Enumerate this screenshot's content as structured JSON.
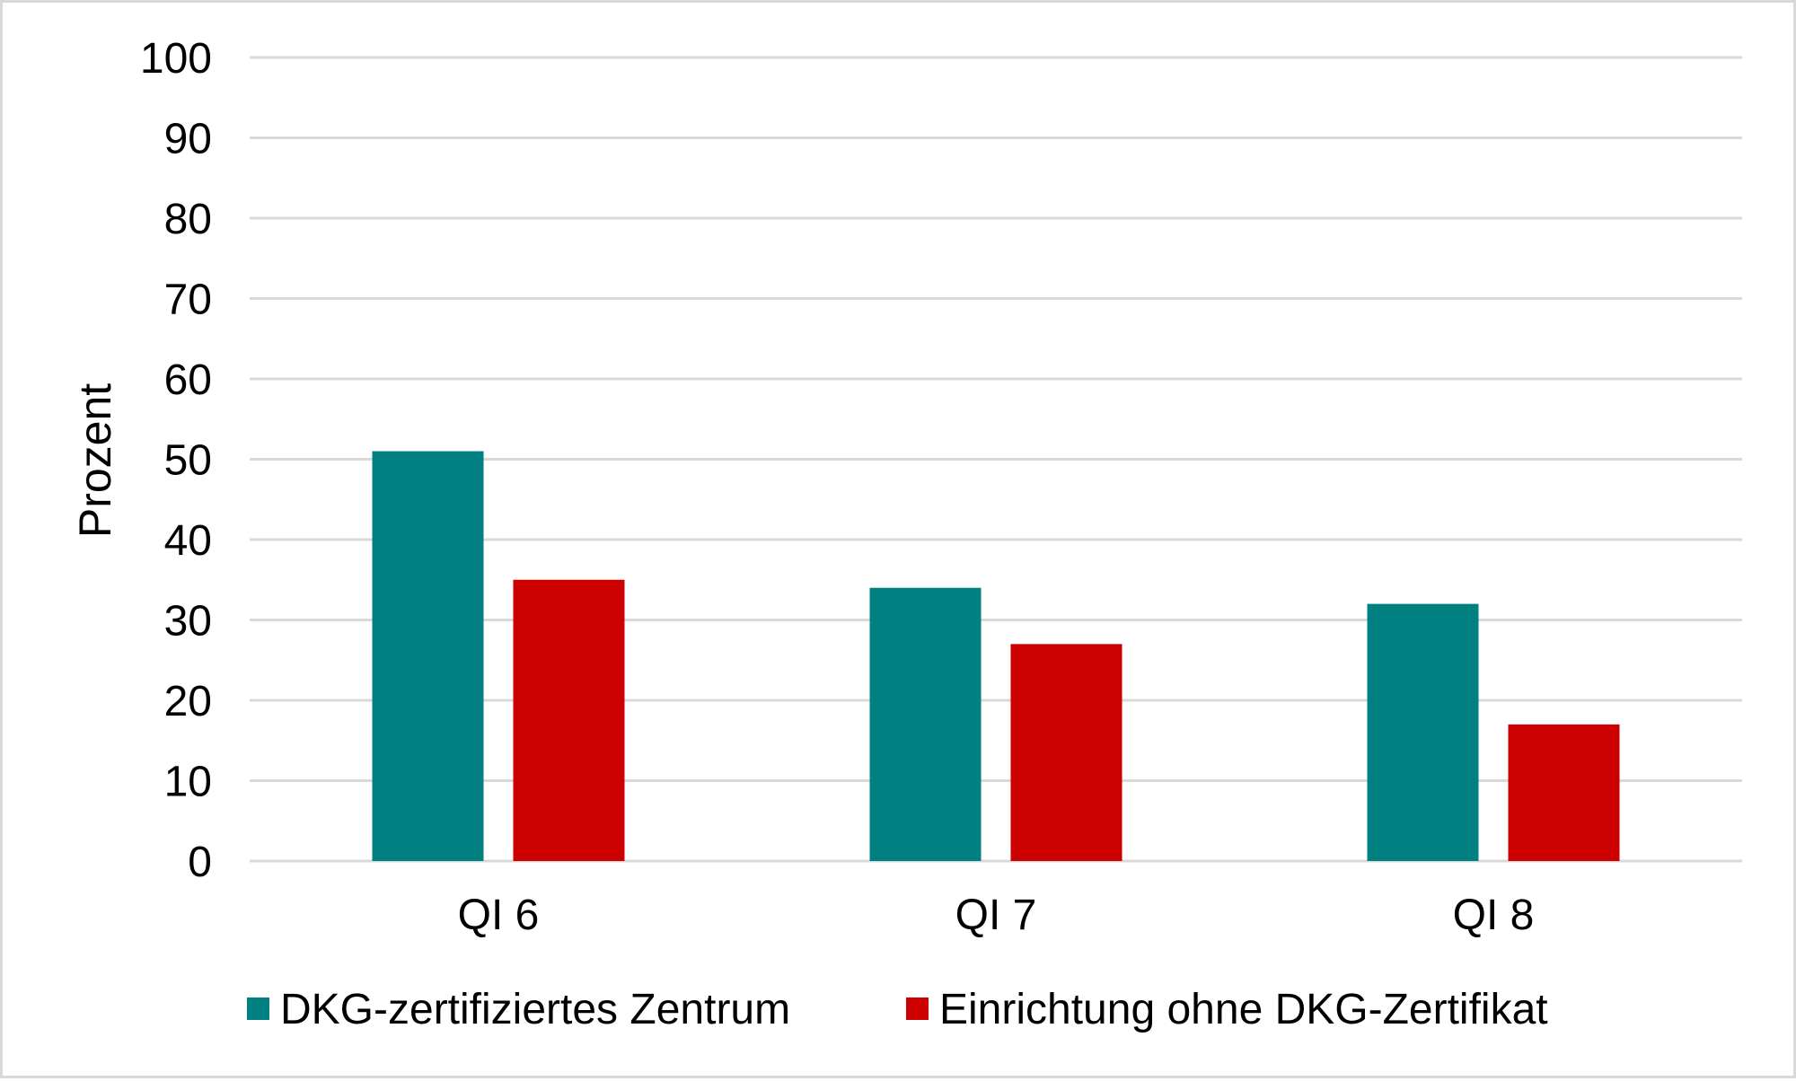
{
  "chart_data": {
    "type": "bar",
    "categories": [
      "QI 6",
      "QI 7",
      "QI 8"
    ],
    "series": [
      {
        "name": "DKG-zertifiziertes Zentrum",
        "values": [
          51,
          34,
          32
        ],
        "color": "#008080"
      },
      {
        "name": "Einrichtung ohne DKG-Zertifikat",
        "values": [
          35,
          27,
          17
        ],
        "color": "#cc0000"
      }
    ],
    "title": "",
    "xlabel": "",
    "ylabel": "Prozent",
    "ylim": [
      0,
      100
    ],
    "yticks": [
      "0",
      "10",
      "20",
      "30",
      "40",
      "50",
      "60",
      "70",
      "80",
      "90",
      "100"
    ],
    "grid": true,
    "legend_position": "bottom"
  }
}
